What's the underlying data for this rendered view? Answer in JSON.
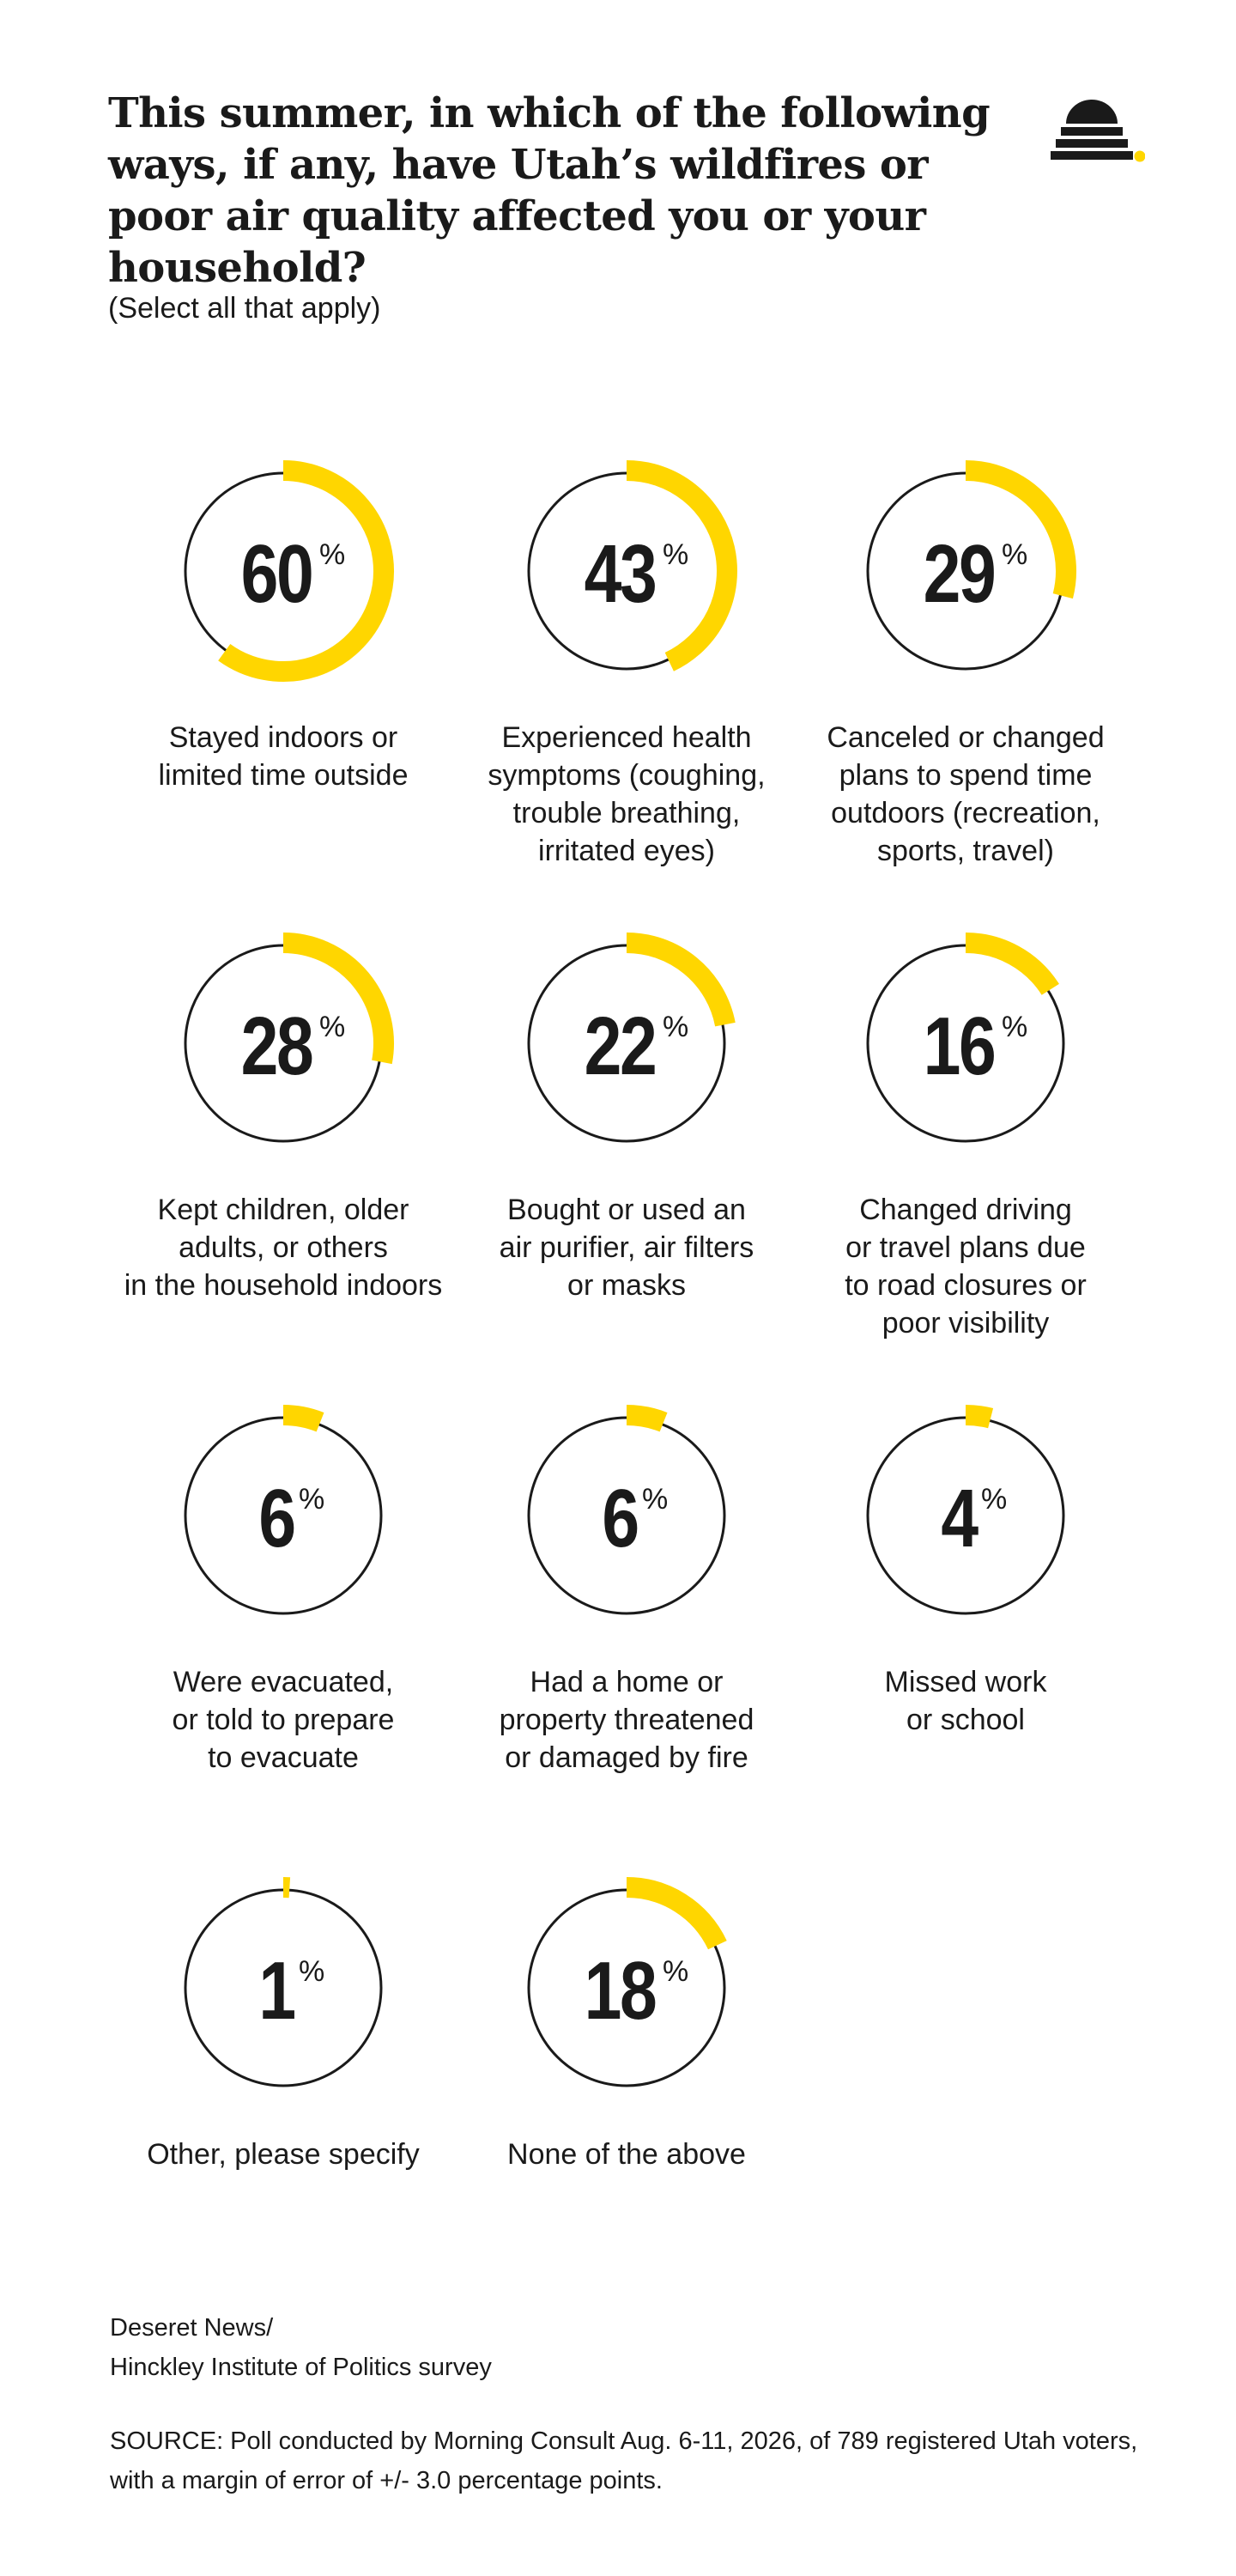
{
  "header": {
    "title_lines": [
      "This summer, in which of the following",
      "ways, if any, have Utah’s wildfires or",
      "poor air quality affected you or your household?"
    ],
    "subtitle": "(Select all that apply)",
    "logo_icon": "beehive-logo-icon"
  },
  "colors": {
    "accent": "#FFD600",
    "ring": "#1a1a1a",
    "text": "#1a1a1a",
    "background": "#ffffff"
  },
  "chart_data": {
    "type": "pie",
    "unit": "%",
    "items": [
      {
        "value": 60,
        "label_lines": [
          "Stayed indoors or",
          "limited time outside"
        ]
      },
      {
        "value": 43,
        "label_lines": [
          "Experienced health",
          "symptoms (coughing,",
          "trouble breathing,",
          "irritated eyes)"
        ]
      },
      {
        "value": 29,
        "label_lines": [
          "Canceled or changed",
          "plans to spend time",
          "outdoors (recreation,",
          "sports, travel)"
        ]
      },
      {
        "value": 28,
        "label_lines": [
          "Kept children, older",
          "adults, or others",
          "in the household indoors"
        ]
      },
      {
        "value": 22,
        "label_lines": [
          "Bought or used an",
          "air purifier, air filters",
          "or masks"
        ]
      },
      {
        "value": 16,
        "label_lines": [
          "Changed driving",
          "or travel plans due",
          "to road closures or",
          "poor visibility"
        ]
      },
      {
        "value": 6,
        "label_lines": [
          "Were evacuated,",
          "or told to prepare",
          "to evacuate"
        ]
      },
      {
        "value": 6,
        "label_lines": [
          "Had a home or",
          "property threatened",
          "or damaged by fire"
        ]
      },
      {
        "value": 4,
        "label_lines": [
          "Missed work",
          "or school"
        ]
      },
      {
        "value": 1,
        "label_lines": [
          "Other, please specify"
        ]
      },
      {
        "value": 18,
        "label_lines": [
          "None of the above"
        ]
      }
    ]
  },
  "footer": {
    "credit_line1": "Deseret News/",
    "credit_line2": "Hinckley Institute of Politics survey",
    "source_note": "SOURCE: Poll conducted by Morning Consult Aug. 6-11, 2026, of 789 registered Utah voters, with a margin of error of +/- 3.0 percentage points."
  }
}
